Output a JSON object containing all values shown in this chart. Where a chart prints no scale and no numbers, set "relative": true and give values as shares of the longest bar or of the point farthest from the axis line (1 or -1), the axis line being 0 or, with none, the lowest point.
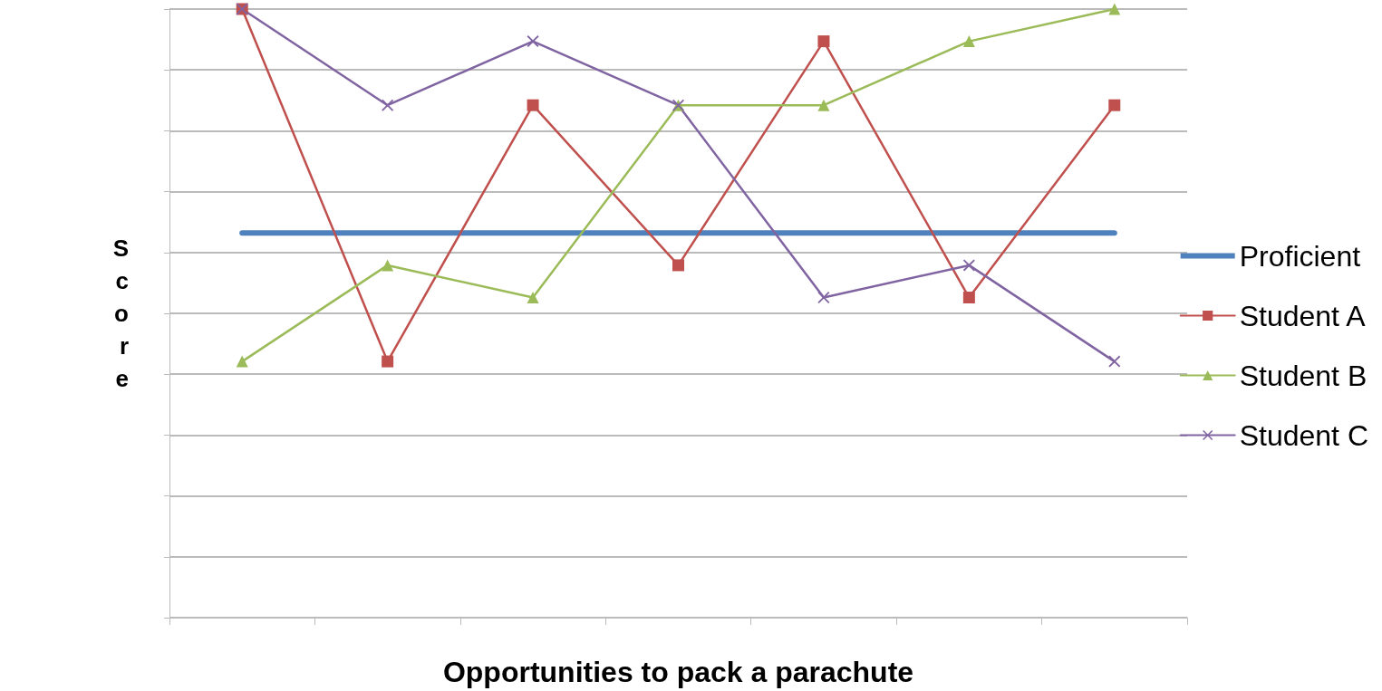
{
  "chart_data": {
    "type": "line",
    "relative": true,
    "xlabel": "Opportunities to pack a parachute",
    "ylabel": "Score",
    "categories": [
      null,
      null,
      null,
      null,
      null,
      null,
      null
    ],
    "grid": "y",
    "legend": "right",
    "line_style": "solid",
    "series": [
      {
        "name": "Proficient",
        "color": "#4f81bd",
        "marker": "none",
        "values": [
          0.632,
          0.632,
          0.632,
          0.632,
          0.632,
          0.632,
          0.632
        ]
      },
      {
        "name": "Student A",
        "color": "#c0504d",
        "marker": "square",
        "values": [
          1,
          0.421,
          0.842,
          0.579,
          0.947,
          0.526,
          0.842
        ]
      },
      {
        "name": "Student B",
        "color": "#9bbb59",
        "marker": "triangle",
        "values": [
          0.421,
          0.579,
          0.526,
          0.842,
          0.842,
          0.947,
          1
        ]
      },
      {
        "name": "Student C",
        "color": "#8064a2",
        "marker": "cross",
        "values": [
          1,
          0.842,
          0.947,
          0.842,
          0.526,
          0.579,
          0.421
        ]
      }
    ]
  }
}
